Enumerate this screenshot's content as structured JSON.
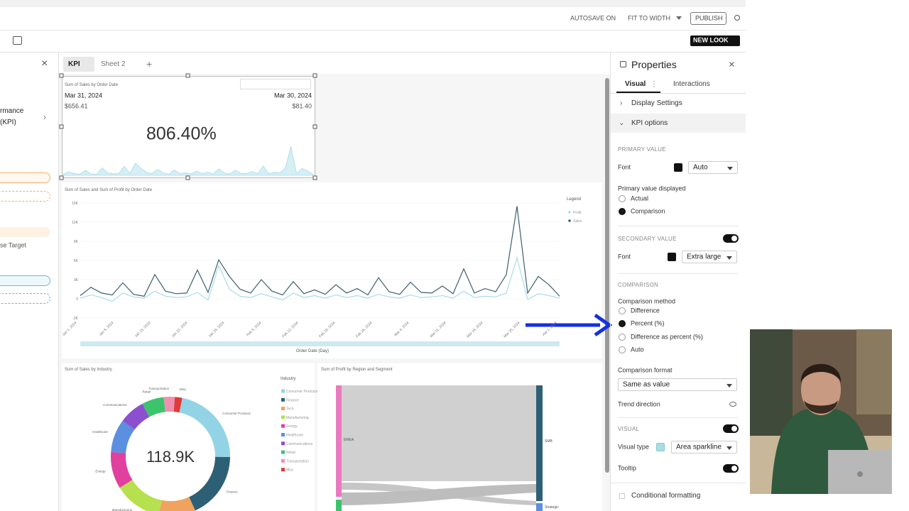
{
  "topbar": {
    "autosave": "AUTOSAVE ON",
    "fit": "FIT TO WIDTH",
    "publish": "PUBLISH",
    "new_look": "NEW LOOK"
  },
  "left_panel": {
    "line1": "rmance",
    "line2": "(KPI)",
    "target": "se Target"
  },
  "tabs": [
    "KPI",
    "Sheet 2"
  ],
  "kpi": {
    "title": "Sum of Sales by Order Date",
    "left_date": "Mar 31, 2024",
    "left_value": "$656.41",
    "right_date": "Mar 30, 2024",
    "right_value": "$81.40",
    "primary": "806.40%"
  },
  "line_chart": {
    "title": "Sum of Sales and Sum of Profit by Order Date",
    "legend_title": "Legend",
    "x_title": "Order Date (Day)",
    "ylim": [
      -3000,
      15000
    ],
    "yticks": [
      {
        "value": 15000,
        "label": "15K"
      },
      {
        "value": 12000,
        "label": "12K"
      },
      {
        "value": 9000,
        "label": "9K"
      },
      {
        "value": 6000,
        "label": "6K"
      },
      {
        "value": 3000,
        "label": "3K"
      },
      0,
      {
        "value": -3000,
        "label": "-3K"
      }
    ],
    "x_labels": [
      "Jan 1, 2024",
      "Jan 8, 2024",
      "Jan 15, 2024",
      "Jan 22, 2024",
      "Jan 29, 2024",
      "Feb 5, 2024",
      "Feb 12, 2024",
      "Feb 19, 2024",
      "Feb 26, 2024",
      "Mar 4, 2024",
      "Mar 11, 2024",
      "Mar 18, 2024",
      "Mar 25, 2024",
      "Apr 1, 2024"
    ],
    "series": [
      {
        "name": "Profit",
        "color": "#a8dde6",
        "values": [
          100,
          600,
          200,
          -400,
          900,
          300,
          100,
          1200,
          400,
          200,
          300,
          1000,
          -200,
          5200,
          1500,
          400,
          200,
          800,
          300,
          -200,
          900,
          200,
          500,
          100,
          600,
          200,
          500,
          100,
          700,
          300,
          100,
          600,
          200,
          300,
          500,
          100,
          1200,
          200,
          400,
          300,
          900,
          6400,
          -100,
          800,
          500,
          100
        ]
      },
      {
        "name": "Sales",
        "color": "#3d5e6c",
        "values": [
          500,
          1800,
          900,
          600,
          2500,
          700,
          400,
          3800,
          1200,
          800,
          900,
          4500,
          1000,
          6100,
          3500,
          1500,
          900,
          3000,
          1200,
          600,
          2700,
          800,
          1400,
          700,
          2200,
          900,
          1600,
          600,
          3300,
          1100,
          700,
          2600,
          1000,
          900,
          2000,
          800,
          4700,
          900,
          1600,
          1100,
          3800,
          14500,
          900,
          3500,
          2200,
          400
        ]
      }
    ]
  },
  "donut": {
    "title": "Sum of Sales by Industry",
    "center": "118.9K",
    "legend_title": "Industry",
    "categories": [
      "Consumer Products",
      "Finance",
      "Tech",
      "Manufacturing",
      "Energy",
      "Healthcare",
      "Communications",
      "Retail",
      "Transportation",
      "Misc"
    ],
    "values": [
      22,
      18,
      10,
      13,
      10,
      9,
      7,
      6,
      3,
      2
    ],
    "colors": [
      "#92d4e6",
      "#2e6075",
      "#f0a35e",
      "#b7e04e",
      "#e0409e",
      "#5b8fe0",
      "#8c4fd0",
      "#3cc46c",
      "#f08fb0",
      "#e03a3a"
    ]
  },
  "sankey": {
    "title": "Sum of Profit by Region and Segment",
    "left": "EMEA",
    "right": "SMB",
    "bottom": "Strategic"
  },
  "properties": {
    "title": "Properties",
    "tab_visual": "Visual",
    "tab_interactions": "Interactions",
    "display_settings": "Display Settings",
    "kpi_options": "KPI options",
    "primary_value": "PRIMARY VALUE",
    "font": "Font",
    "font_value": "Auto",
    "primary_displayed": "Primary value displayed",
    "actual": "Actual",
    "comparison": "Comparison",
    "secondary_value": "SECONDARY VALUE",
    "font2": "Font",
    "font2_value": "Extra large",
    "comparison_header": "COMPARISON",
    "comparison_method": "Comparison method",
    "difference": "Difference",
    "percent": "Percent (%)",
    "difference_percent": "Difference as percent (%)",
    "auto": "Auto",
    "comparison_format": "Comparison format",
    "format_value": "Same as value",
    "trend_direction": "Trend direction",
    "visual_header": "VISUAL",
    "visual_type": "Visual type",
    "visual_type_value": "Area sparkline",
    "tooltip": "Tooltip",
    "conditional_formatting": "Conditional formatting"
  }
}
